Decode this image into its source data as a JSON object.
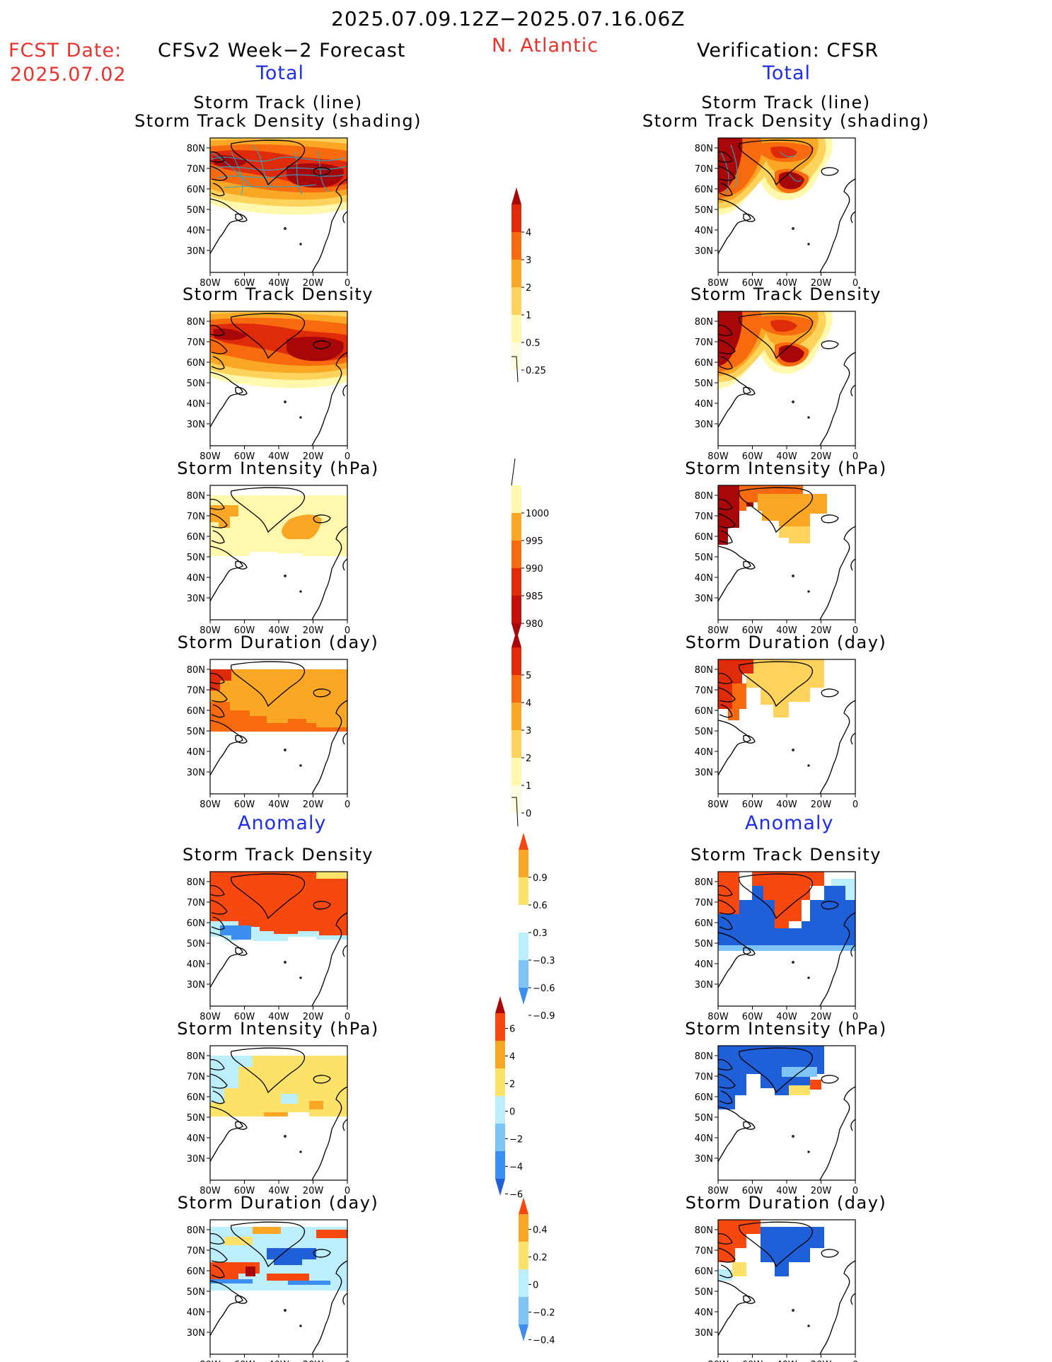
{
  "header": {
    "period": "2025.07.09.12Z−2025.07.16.06Z",
    "fcst_label": "FCST Date:",
    "fcst_date": "2025.07.02",
    "forecast_title": "CFSv2 Week−2 Forecast",
    "region": "N. Atlantic",
    "verification_title": "Verification: CFSR"
  },
  "sections": {
    "total": "Total",
    "anomaly": "Anomaly"
  },
  "panel_titles": {
    "track_line_1": "Storm Track (line)",
    "track_line_2": "Storm Track Density (shading)",
    "density": "Storm Track Density",
    "intensity": "Storm Intensity (hPa)",
    "duration": "Storm Duration (day)"
  },
  "axes": {
    "lat_labels": [
      "80N",
      "70N",
      "60N",
      "50N",
      "40N",
      "30N"
    ],
    "lon_labels": [
      "80W",
      "60W",
      "40W",
      "20W",
      "0"
    ]
  },
  "colorbars": {
    "density_total": [
      "4",
      "3",
      "2",
      "1",
      "0.5",
      "0.25"
    ],
    "intensity_total": [
      "1000",
      "995",
      "990",
      "985",
      "980"
    ],
    "duration_total": [
      "5",
      "4",
      "3",
      "2",
      "1",
      "0"
    ],
    "density_anom": [
      "0.9",
      "0.6",
      "0.3",
      "−0.3",
      "−0.6",
      "−0.9"
    ],
    "intensity_anom": [
      "6",
      "4",
      "2",
      "0",
      "−2",
      "−4",
      "−6"
    ],
    "duration_anom": [
      "0.4",
      "0.2",
      "0",
      "−0.2",
      "−0.4"
    ]
  },
  "palettes": {
    "warm": [
      "#fff8ad",
      "#fdd35c",
      "#fba726",
      "#f86a0e",
      "#e02b0b",
      "#a8070a"
    ],
    "cool": [
      "#fff8ad",
      "#fdd35c",
      "#fba726",
      "#f86a0e",
      "#e02b0b",
      "#a8070a"
    ],
    "anom_pos": [
      "#fde26a",
      "#fba726",
      "#f6480f",
      "#a8070a"
    ],
    "anom_neg": [
      "#bdeefc",
      "#7ec4f5",
      "#3c8ff0",
      "#1f5fd8"
    ],
    "track_line": "#2aa9c9"
  }
}
